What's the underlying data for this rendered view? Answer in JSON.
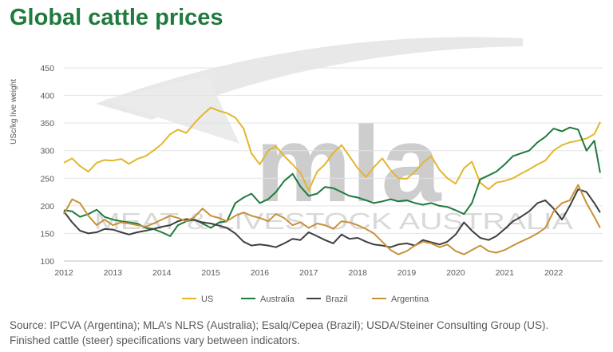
{
  "title": "Global cattle prices",
  "watermark": {
    "logo": "mla",
    "tagline": "MEAT & LIVESTOCK AUSTRALIA"
  },
  "source": {
    "line1": "Source: IPCVA (Argentina); MLA’s NLRS (Australia); Esalq/Cepea (Brazil); USDA/Steiner Consulting Group (US).",
    "line2": "Finished cattle (steer) specifications vary between indicators."
  },
  "chart_data": {
    "type": "line",
    "ylabel": "USc/kg live weight",
    "ylim": [
      100,
      450
    ],
    "yticks": [
      "100",
      "150",
      "200",
      "250",
      "300",
      "350",
      "400",
      "450"
    ],
    "xlim": [
      2012,
      2023
    ],
    "xticks": [
      "2012",
      "2013",
      "2014",
      "2015",
      "2016",
      "2017",
      "2018",
      "2019",
      "2020",
      "2021",
      "2022"
    ],
    "grid": true,
    "legend_position": "bottom",
    "series": [
      {
        "name": "US",
        "color": "#e3b62d",
        "x": [
          2012.0,
          2012.17,
          2012.33,
          2012.5,
          2012.67,
          2012.83,
          2013.0,
          2013.17,
          2013.33,
          2013.5,
          2013.67,
          2013.83,
          2014.0,
          2014.17,
          2014.33,
          2014.5,
          2014.67,
          2014.83,
          2015.0,
          2015.17,
          2015.33,
          2015.5,
          2015.67,
          2015.83,
          2016.0,
          2016.17,
          2016.33,
          2016.5,
          2016.67,
          2016.83,
          2017.0,
          2017.17,
          2017.33,
          2017.5,
          2017.67,
          2017.83,
          2018.0,
          2018.17,
          2018.33,
          2018.5,
          2018.67,
          2018.83,
          2019.0,
          2019.17,
          2019.33,
          2019.5,
          2019.67,
          2019.83,
          2020.0,
          2020.17,
          2020.33,
          2020.5,
          2020.67,
          2020.83,
          2021.0,
          2021.17,
          2021.33,
          2021.5,
          2021.67,
          2021.83,
          2022.0,
          2022.17,
          2022.33,
          2022.5,
          2022.67,
          2022.83,
          2022.95
        ],
        "values": [
          278,
          286,
          272,
          262,
          278,
          283,
          282,
          285,
          276,
          285,
          290,
          300,
          312,
          330,
          338,
          332,
          350,
          365,
          378,
          372,
          368,
          360,
          340,
          295,
          275,
          300,
          308,
          290,
          275,
          260,
          228,
          262,
          275,
          296,
          310,
          290,
          268,
          252,
          270,
          286,
          265,
          250,
          249,
          262,
          278,
          290,
          265,
          250,
          240,
          268,
          280,
          242,
          230,
          242,
          245,
          250,
          258,
          266,
          275,
          282,
          300,
          310,
          315,
          318,
          322,
          330,
          352
        ]
      },
      {
        "name": "Australia",
        "color": "#1f7a3d",
        "x": [
          2012.0,
          2012.17,
          2012.33,
          2012.5,
          2012.67,
          2012.83,
          2013.0,
          2013.17,
          2013.33,
          2013.5,
          2013.67,
          2013.83,
          2014.0,
          2014.17,
          2014.33,
          2014.5,
          2014.67,
          2014.83,
          2015.0,
          2015.17,
          2015.33,
          2015.5,
          2015.67,
          2015.83,
          2016.0,
          2016.17,
          2016.33,
          2016.5,
          2016.67,
          2016.83,
          2017.0,
          2017.17,
          2017.33,
          2017.5,
          2017.67,
          2017.83,
          2018.0,
          2018.17,
          2018.33,
          2018.5,
          2018.67,
          2018.83,
          2019.0,
          2019.17,
          2019.33,
          2019.5,
          2019.67,
          2019.83,
          2020.0,
          2020.17,
          2020.33,
          2020.5,
          2020.67,
          2020.83,
          2021.0,
          2021.17,
          2021.33,
          2021.5,
          2021.67,
          2021.83,
          2022.0,
          2022.17,
          2022.33,
          2022.5,
          2022.67,
          2022.83,
          2022.95
        ],
        "values": [
          192,
          190,
          180,
          185,
          193,
          180,
          175,
          172,
          170,
          168,
          160,
          158,
          152,
          145,
          165,
          172,
          175,
          168,
          160,
          170,
          172,
          205,
          215,
          222,
          205,
          212,
          225,
          245,
          258,
          235,
          218,
          222,
          234,
          232,
          225,
          218,
          215,
          210,
          205,
          208,
          212,
          208,
          210,
          205,
          202,
          205,
          200,
          198,
          192,
          185,
          205,
          248,
          255,
          262,
          275,
          290,
          295,
          300,
          315,
          325,
          340,
          335,
          342,
          338,
          300,
          318,
          260
        ]
      },
      {
        "name": "Brazil",
        "color": "#3f3f3f",
        "x": [
          2012.0,
          2012.17,
          2012.33,
          2012.5,
          2012.67,
          2012.83,
          2013.0,
          2013.17,
          2013.33,
          2013.5,
          2013.67,
          2013.83,
          2014.0,
          2014.17,
          2014.33,
          2014.5,
          2014.67,
          2014.83,
          2015.0,
          2015.17,
          2015.33,
          2015.5,
          2015.67,
          2015.83,
          2016.0,
          2016.17,
          2016.33,
          2016.5,
          2016.67,
          2016.83,
          2017.0,
          2017.17,
          2017.33,
          2017.5,
          2017.67,
          2017.83,
          2018.0,
          2018.17,
          2018.33,
          2018.5,
          2018.67,
          2018.83,
          2019.0,
          2019.17,
          2019.33,
          2019.5,
          2019.67,
          2019.83,
          2020.0,
          2020.17,
          2020.33,
          2020.5,
          2020.67,
          2020.83,
          2021.0,
          2021.17,
          2021.33,
          2021.5,
          2021.67,
          2021.83,
          2022.0,
          2022.17,
          2022.33,
          2022.5,
          2022.67,
          2022.83,
          2022.95
        ],
        "values": [
          190,
          170,
          155,
          150,
          152,
          158,
          157,
          152,
          148,
          152,
          155,
          158,
          162,
          165,
          172,
          176,
          174,
          170,
          168,
          164,
          160,
          150,
          135,
          128,
          130,
          128,
          125,
          132,
          140,
          138,
          152,
          145,
          138,
          132,
          148,
          140,
          142,
          135,
          130,
          128,
          125,
          130,
          132,
          128,
          138,
          134,
          130,
          135,
          148,
          170,
          155,
          142,
          138,
          145,
          158,
          172,
          180,
          190,
          205,
          210,
          195,
          175,
          200,
          230,
          225,
          205,
          188
        ]
      },
      {
        "name": "Argentina",
        "color": "#c8913a",
        "x": [
          2012.0,
          2012.17,
          2012.33,
          2012.5,
          2012.67,
          2012.83,
          2013.0,
          2013.17,
          2013.33,
          2013.5,
          2013.67,
          2013.83,
          2014.0,
          2014.17,
          2014.33,
          2014.5,
          2014.67,
          2014.83,
          2015.0,
          2015.17,
          2015.33,
          2015.5,
          2015.67,
          2015.83,
          2016.0,
          2016.17,
          2016.33,
          2016.5,
          2016.67,
          2016.83,
          2017.0,
          2017.17,
          2017.33,
          2017.5,
          2017.67,
          2017.83,
          2018.0,
          2018.17,
          2018.33,
          2018.5,
          2018.67,
          2018.83,
          2019.0,
          2019.17,
          2019.33,
          2019.5,
          2019.67,
          2019.83,
          2020.0,
          2020.17,
          2020.33,
          2020.5,
          2020.67,
          2020.83,
          2021.0,
          2021.17,
          2021.33,
          2021.5,
          2021.67,
          2021.83,
          2022.0,
          2022.17,
          2022.33,
          2022.5,
          2022.67,
          2022.83,
          2022.95
        ],
        "values": [
          185,
          212,
          205,
          182,
          165,
          175,
          165,
          170,
          168,
          165,
          162,
          168,
          175,
          182,
          178,
          172,
          180,
          195,
          182,
          178,
          172,
          182,
          188,
          182,
          178,
          172,
          185,
          178,
          165,
          170,
          160,
          168,
          165,
          158,
          172,
          170,
          165,
          158,
          150,
          135,
          120,
          112,
          118,
          128,
          135,
          132,
          125,
          130,
          118,
          112,
          120,
          128,
          118,
          115,
          120,
          128,
          135,
          142,
          150,
          160,
          190,
          205,
          210,
          238,
          205,
          180,
          160
        ]
      }
    ]
  }
}
